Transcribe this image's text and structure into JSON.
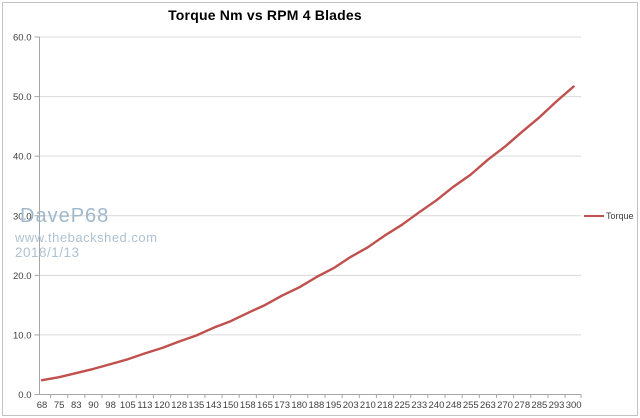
{
  "title": "Torque Nm vs RPM 4 Blades",
  "legend": {
    "label": "Torque"
  },
  "watermark": {
    "line1": "DaveP68",
    "line2": "www.thebackshed.com",
    "line3": "2018/1/13"
  },
  "colors": {
    "series": "#C0504D",
    "gridline": "#D9D9D9",
    "axis": "#A6A6A6",
    "tick_label": "#3f3f3f",
    "watermark": "#a7bdd0",
    "frame_border": "#c3c3c3",
    "background": "#ffffff"
  },
  "chart_data": {
    "type": "line",
    "title": "Torque Nm vs RPM 4 Blades",
    "xlabel": "",
    "ylabel": "",
    "categories": [
      68,
      75,
      83,
      90,
      98,
      105,
      113,
      120,
      128,
      135,
      143,
      150,
      158,
      165,
      173,
      180,
      188,
      195,
      203,
      210,
      218,
      225,
      233,
      240,
      248,
      255,
      263,
      270,
      278,
      285,
      293,
      300
    ],
    "series": [
      {
        "name": "Torque",
        "color": "#C0504D",
        "values": [
          2.4,
          2.9,
          3.6,
          4.3,
          5.1,
          5.9,
          6.9,
          7.8,
          8.9,
          9.9,
          11.2,
          12.3,
          13.7,
          15.0,
          16.6,
          18.0,
          19.7,
          21.2,
          23.1,
          24.7,
          26.7,
          28.5,
          30.6,
          32.6,
          34.9,
          36.9,
          39.4,
          41.6,
          44.1,
          46.5,
          49.2,
          51.7
        ]
      }
    ],
    "y_ticks": [
      "60.0",
      "50.0",
      "40.0",
      "30.0",
      "20.0",
      "10.0",
      "0.0"
    ],
    "ylim": [
      0,
      60
    ],
    "grid": "horizontal",
    "legend_position": "right"
  }
}
